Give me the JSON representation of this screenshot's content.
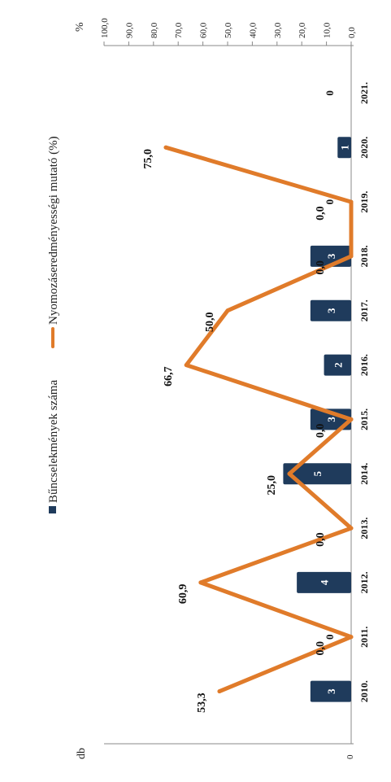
{
  "chart_data": {
    "type": "bar",
    "categories": [
      "2010.",
      "2011.",
      "2012.",
      "2013.",
      "2014.",
      "2015.",
      "2016.",
      "2017.",
      "2018.",
      "2019.",
      "2020.",
      "2021."
    ],
    "series": [
      {
        "name": "Bűncselekmények száma",
        "type": "bar",
        "axis": "left",
        "color": "#1f3b5c",
        "values": [
          3,
          0,
          4,
          0,
          5,
          3,
          2,
          3,
          3,
          0,
          1,
          0
        ],
        "labels": [
          "3",
          "0",
          "4",
          "",
          "5",
          "3",
          "2",
          "3",
          "3",
          "0",
          "1",
          "0"
        ]
      },
      {
        "name": "Nyomozáseredményességi mutató (%)",
        "type": "line",
        "axis": "right",
        "color": "#e07b2a",
        "values": [
          53.3,
          0.0,
          60.9,
          0.0,
          25.0,
          0.0,
          66.7,
          50.0,
          0.0,
          0.0,
          75.0,
          null
        ],
        "labels": [
          "53,3",
          "0,0",
          "60,9",
          "0,0",
          "25,0",
          "0,0",
          "66,7",
          "50,0",
          "0,0",
          "0,0",
          "75,0",
          ""
        ]
      }
    ],
    "left_axis": {
      "unit": "db",
      "tick_labels": [
        "0"
      ],
      "ylim": [
        0,
        6
      ]
    },
    "right_axis": {
      "unit": "%",
      "ylim": [
        0,
        100
      ],
      "tick_labels": [
        "0,0",
        "10,0",
        "20,0",
        "30,0",
        "40,0",
        "50,0",
        "60,0",
        "70,0",
        "80,0",
        "90,0",
        "100,0"
      ]
    },
    "legend_position": "top",
    "grid": false,
    "orientation": "rotated-90-ccw"
  }
}
